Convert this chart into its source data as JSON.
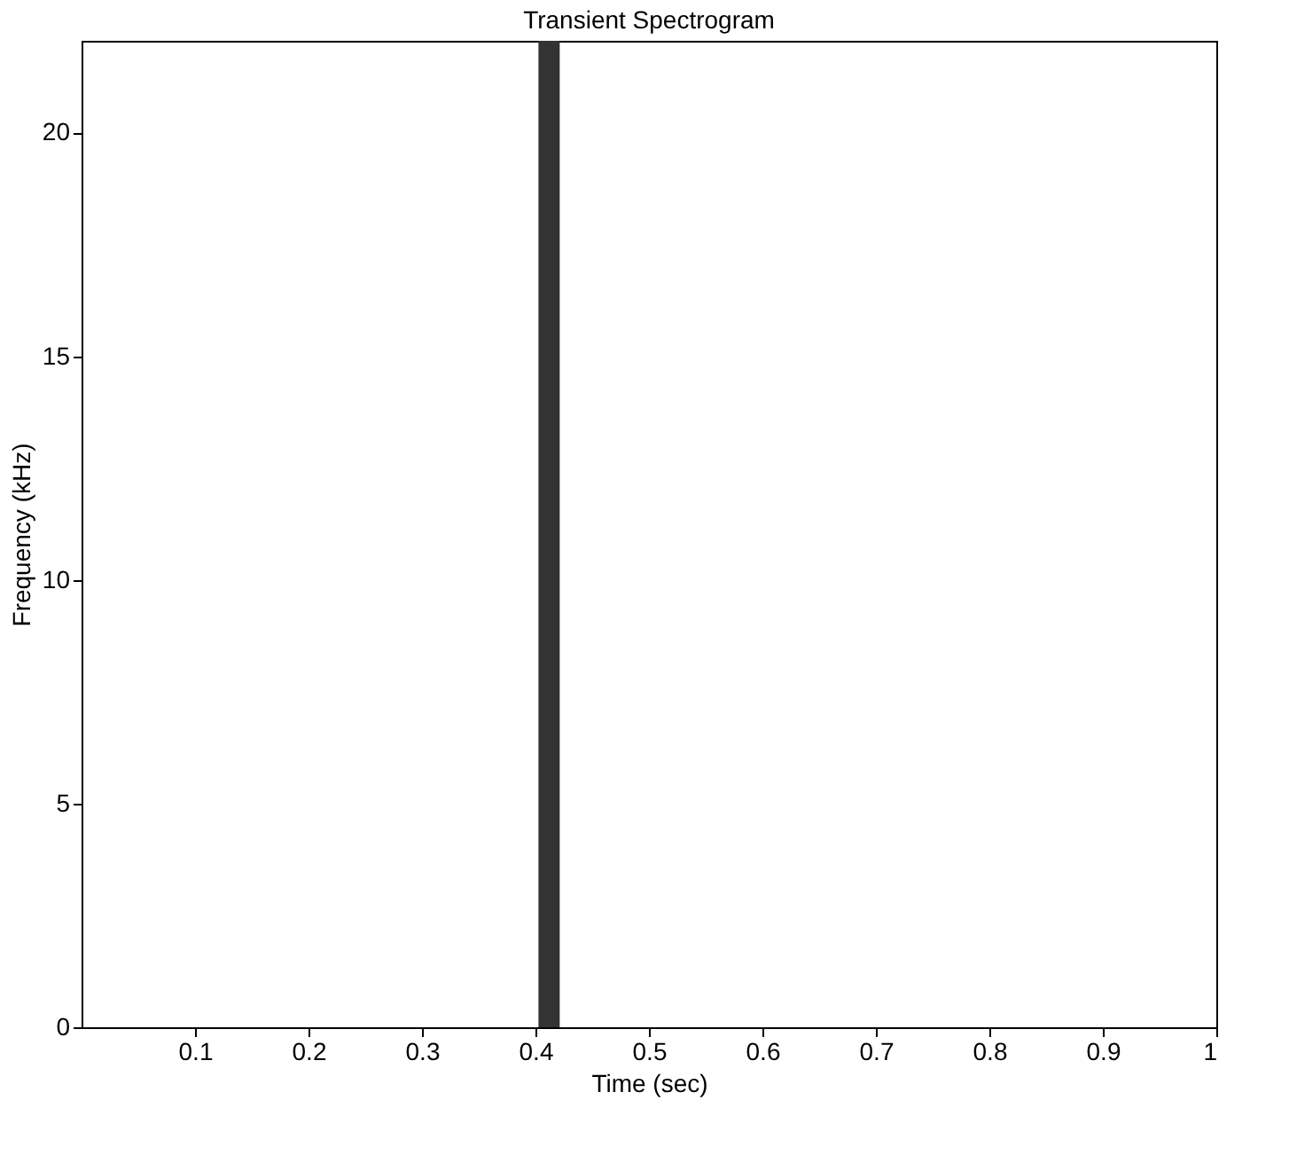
{
  "chart_data": {
    "type": "bar",
    "title": "Transient Spectrogram",
    "xlabel": "Time (sec)",
    "ylabel": "Frequency (kHz)",
    "xlim": [
      0,
      1
    ],
    "xticks": [
      0.1,
      0.2,
      0.3,
      0.4,
      0.5,
      0.6,
      0.7,
      0.8,
      0.9,
      1
    ],
    "ylim": [
      0,
      22.05
    ],
    "yticks": [
      0,
      5,
      10,
      15,
      20
    ],
    "x": [
      0.412
    ],
    "values": [
      22.05
    ],
    "color": "#333333"
  }
}
